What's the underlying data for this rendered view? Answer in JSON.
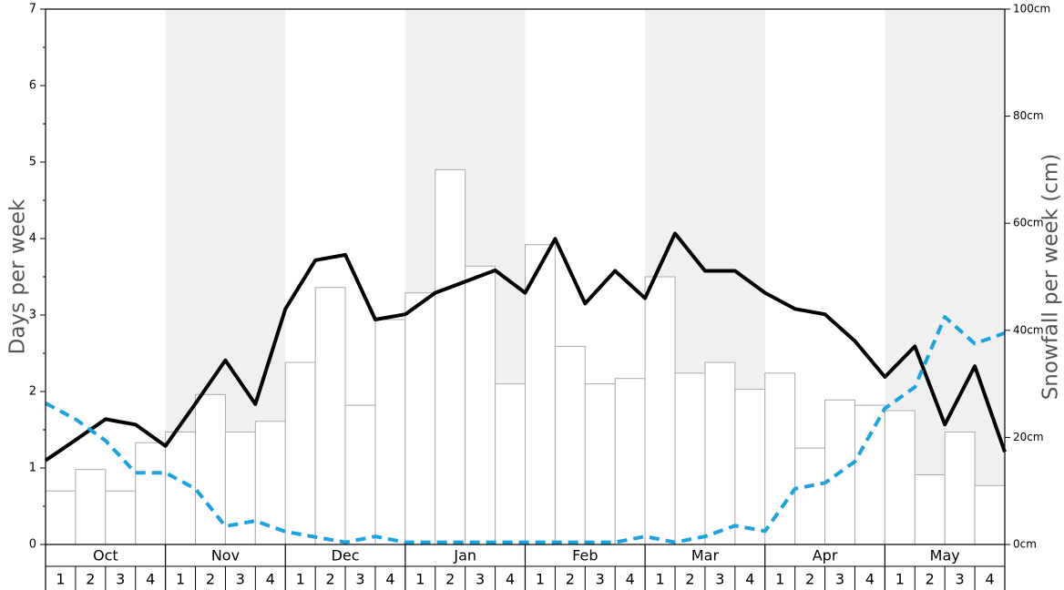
{
  "chart_data": {
    "type": "bar",
    "y_left_label": "Days per week",
    "y_right_label": "Snowfall per week (cm)",
    "y_left_range": [
      0,
      7
    ],
    "y_left_ticks": [
      "0",
      "1",
      "2",
      "3",
      "4",
      "5",
      "6",
      "7"
    ],
    "y_right_range": [
      0,
      100
    ],
    "y_right_ticks": [
      "0cm",
      "20cm",
      "40cm",
      "60cm",
      "80cm",
      "100cm"
    ],
    "months": [
      "Oct",
      "Nov",
      "Dec",
      "Jan",
      "Feb",
      "Mar",
      "Apr",
      "May"
    ],
    "week_labels": [
      "1",
      "2",
      "3",
      "4"
    ],
    "shaded_months": [
      "Nov",
      "Jan",
      "Mar",
      "May"
    ],
    "grid": false,
    "colors": {
      "bar_fill": "#ffffff",
      "bar_stroke": "#aaaaaa",
      "snowfall_line": "#000000",
      "dashed_line": "#1aa3e0",
      "shade": "#f0f0f0"
    },
    "series": [
      {
        "type": "bar",
        "axis": "left",
        "values": [
          0.7,
          0.98,
          0.7,
          1.33,
          1.47,
          1.96,
          1.47,
          1.61,
          2.38,
          3.36,
          1.82,
          2.94,
          3.29,
          4.9,
          3.64,
          2.1,
          3.92,
          2.59,
          2.1,
          2.17,
          3.5,
          2.24,
          2.38,
          2.03,
          2.24,
          1.26,
          1.89,
          1.82,
          1.75,
          0.91,
          1.47,
          0.77
        ]
      },
      {
        "type": "line",
        "axis": "right",
        "style": "solid",
        "values": [
          15.7,
          19.5,
          23.4,
          22.4,
          18.4,
          26.3,
          34.4,
          26.2,
          44,
          53.1,
          54.1,
          42,
          43,
          47,
          49.1,
          51.2,
          47,
          57.1,
          45,
          51.1,
          46,
          58.1,
          51.1,
          51.1,
          47,
          44,
          43,
          38,
          31.3,
          37,
          22.4,
          33.3,
          17.3
        ]
      },
      {
        "type": "line",
        "axis": "right",
        "style": "dashed",
        "values": [
          26.4,
          23.4,
          19.4,
          13.4,
          13.4,
          10.4,
          3.4,
          4.4,
          2.4,
          1.4,
          0.4,
          1.5,
          0.4,
          0.4,
          0.4,
          0.4,
          0.4,
          0.4,
          0.4,
          0.4,
          1.5,
          0.4,
          1.5,
          3.5,
          2.5,
          10.4,
          11.5,
          15.5,
          25.4,
          29.4,
          42.5,
          37.5,
          39.5
        ]
      }
    ]
  }
}
